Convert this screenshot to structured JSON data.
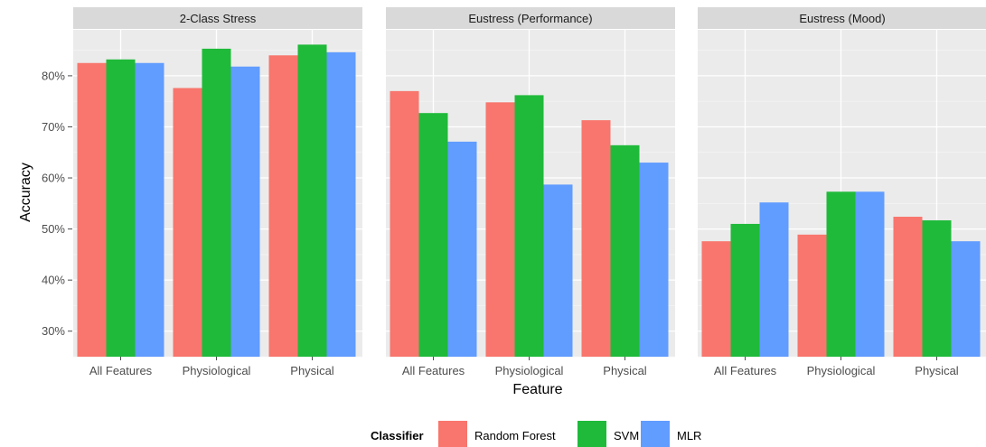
{
  "chart_data": {
    "type": "bar",
    "xlabel": "Feature",
    "ylabel": "Accuracy",
    "ylim": [
      25,
      89
    ],
    "yticks": [
      30,
      40,
      50,
      60,
      70,
      80
    ],
    "ytick_format": "%",
    "grid": true,
    "legend_position": "bottom",
    "legend_title": "Classifier",
    "categories": [
      "All Features",
      "Physiological",
      "Physical"
    ],
    "series_meta": [
      {
        "name": "Random Forest",
        "color": "#F8766D"
      },
      {
        "name": "SVM",
        "color": "#1FBA3A"
      },
      {
        "name": "MLR",
        "color": "#619CFF"
      }
    ],
    "facets": [
      {
        "title": "2-Class Stress",
        "series": [
          {
            "name": "Random Forest",
            "values": [
              82.5,
              77.6,
              84.0
            ]
          },
          {
            "name": "SVM",
            "values": [
              83.2,
              85.3,
              86.1
            ]
          },
          {
            "name": "MLR",
            "values": [
              82.5,
              81.8,
              84.6
            ]
          }
        ]
      },
      {
        "title": "Eustress (Performance)",
        "series": [
          {
            "name": "Random Forest",
            "values": [
              77.0,
              74.8,
              71.3
            ]
          },
          {
            "name": "SVM",
            "values": [
              72.7,
              76.2,
              66.4
            ]
          },
          {
            "name": "MLR",
            "values": [
              67.1,
              58.7,
              63.0
            ]
          }
        ]
      },
      {
        "title": "Eustress (Mood)",
        "series": [
          {
            "name": "Random Forest",
            "values": [
              47.6,
              48.9,
              52.4
            ]
          },
          {
            "name": "SVM",
            "values": [
              51.0,
              57.3,
              51.7
            ]
          },
          {
            "name": "MLR",
            "values": [
              55.2,
              57.3,
              47.6
            ]
          }
        ]
      }
    ]
  }
}
